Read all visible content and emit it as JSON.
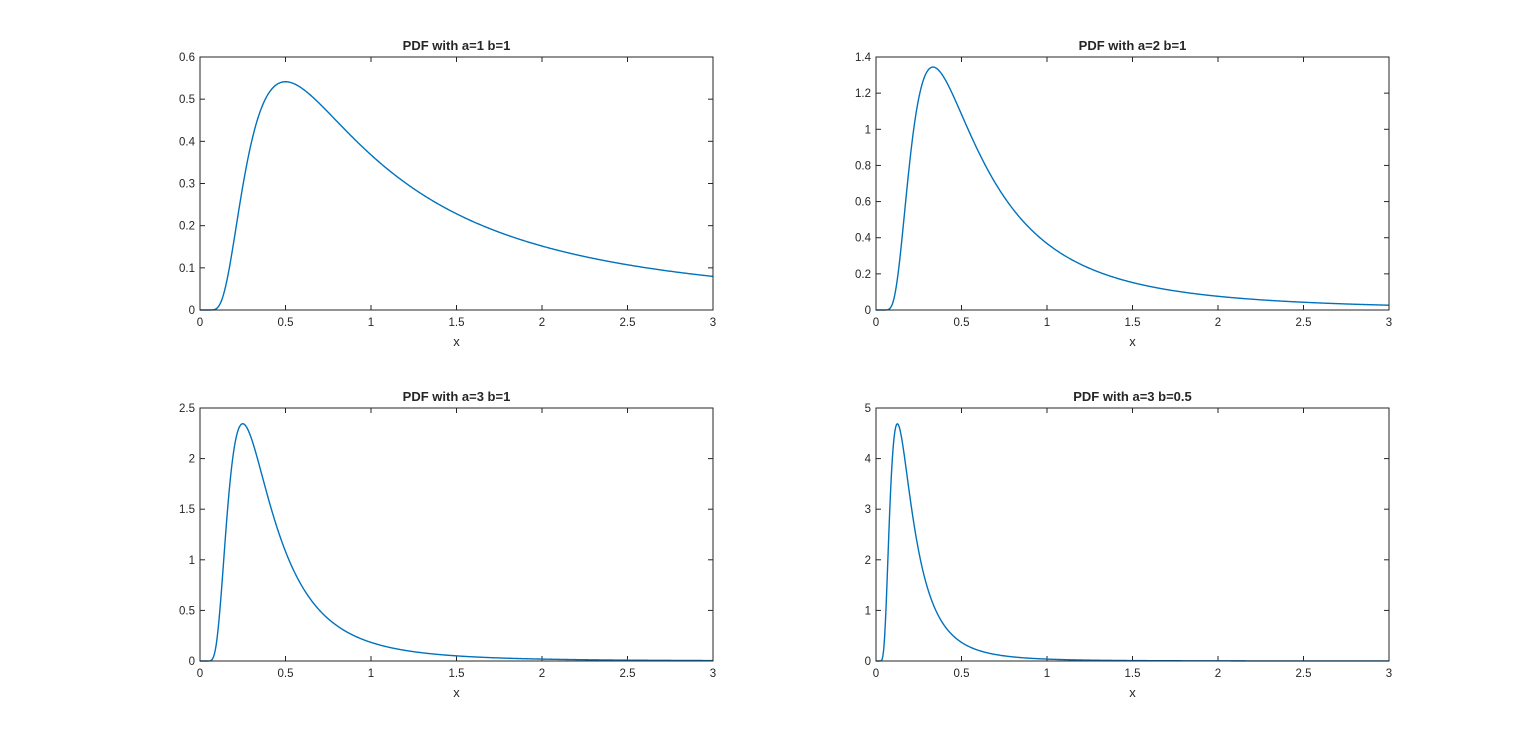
{
  "figure": {
    "line_color": "#0072bd",
    "axis_color": "#262626",
    "background": "#ffffff"
  },
  "chart_data": [
    {
      "type": "line",
      "title": "PDF with a=1 b=1",
      "xlabel": "x",
      "ylabel": "",
      "params": {
        "a": 1,
        "b": 1
      },
      "xlim": [
        0,
        3
      ],
      "ylim": [
        0,
        0.6
      ],
      "xticks": [
        0,
        0.5,
        1,
        1.5,
        2,
        2.5,
        3
      ],
      "xtick_labels": [
        "0",
        "0.5",
        "1",
        "1.5",
        "2",
        "2.5",
        "3"
      ],
      "yticks": [
        0,
        0.1,
        0.2,
        0.3,
        0.4,
        0.5,
        0.6
      ],
      "ytick_labels": [
        "0",
        "0.1",
        "0.2",
        "0.3",
        "0.4",
        "0.5",
        "0.6"
      ],
      "grid": false,
      "legend": null,
      "series": [
        {
          "name": "PDF",
          "x": [
            0,
            0.1,
            0.2,
            0.3,
            0.4,
            0.5,
            0.75,
            1,
            1.5,
            2,
            2.5,
            3
          ],
          "y": [
            0,
            0.0045,
            0.168,
            0.396,
            0.513,
            0.541,
            0.468,
            0.368,
            0.228,
            0.152,
            0.107,
            0.08
          ]
        }
      ]
    },
    {
      "type": "line",
      "title": "PDF with a=2 b=1",
      "xlabel": "x",
      "ylabel": "",
      "params": {
        "a": 2,
        "b": 1
      },
      "xlim": [
        0,
        3
      ],
      "ylim": [
        0,
        1.4
      ],
      "xticks": [
        0,
        0.5,
        1,
        1.5,
        2,
        2.5,
        3
      ],
      "xtick_labels": [
        "0",
        "0.5",
        "1",
        "1.5",
        "2",
        "2.5",
        "3"
      ],
      "yticks": [
        0,
        0.2,
        0.4,
        0.6,
        0.8,
        1,
        1.2,
        1.4
      ],
      "ytick_labels": [
        "0",
        "0.2",
        "0.4",
        "0.6",
        "0.8",
        "1",
        "1.2",
        "1.4"
      ],
      "grid": false,
      "legend": null,
      "series": [
        {
          "name": "PDF",
          "x": [
            0,
            0.1,
            0.2,
            0.3,
            0.333,
            0.4,
            0.5,
            0.75,
            1,
            1.5,
            2,
            2.5,
            3
          ],
          "y": [
            0,
            0.045,
            0.842,
            1.322,
            1.344,
            1.282,
            1.083,
            0.625,
            0.368,
            0.152,
            0.076,
            0.043,
            0.027
          ]
        }
      ]
    },
    {
      "type": "line",
      "title": "PDF with a=3 b=1",
      "xlabel": "x",
      "ylabel": "",
      "params": {
        "a": 3,
        "b": 1
      },
      "xlim": [
        0,
        3
      ],
      "ylim": [
        0,
        2.5
      ],
      "xticks": [
        0,
        0.5,
        1,
        1.5,
        2,
        2.5,
        3
      ],
      "xtick_labels": [
        "0",
        "0.5",
        "1",
        "1.5",
        "2",
        "2.5",
        "3"
      ],
      "yticks": [
        0,
        0.5,
        1,
        1.5,
        2,
        2.5
      ],
      "ytick_labels": [
        "0",
        "0.5",
        "1",
        "1.5",
        "2",
        "2.5"
      ],
      "grid": false,
      "legend": null,
      "series": [
        {
          "name": "PDF",
          "x": [
            0,
            0.1,
            0.15,
            0.2,
            0.25,
            0.3,
            0.4,
            0.5,
            0.75,
            1,
            1.5,
            2,
            2.5,
            3
          ],
          "y": [
            0,
            0.227,
            1.254,
            2.106,
            2.344,
            2.203,
            1.603,
            1.083,
            0.417,
            0.184,
            0.051,
            0.019,
            0.009,
            0.004
          ]
        }
      ]
    },
    {
      "type": "line",
      "title": "PDF with a=3 b=0.5",
      "xlabel": "x",
      "ylabel": "",
      "params": {
        "a": 3,
        "b": 0.5
      },
      "xlim": [
        0,
        3
      ],
      "ylim": [
        0,
        5
      ],
      "xticks": [
        0,
        0.5,
        1,
        1.5,
        2,
        2.5,
        3
      ],
      "xtick_labels": [
        "0",
        "0.5",
        "1",
        "1.5",
        "2",
        "2.5",
        "3"
      ],
      "yticks": [
        0,
        1,
        2,
        3,
        4,
        5
      ],
      "ytick_labels": [
        "0",
        "1",
        "2",
        "3",
        "4",
        "5"
      ],
      "grid": false,
      "legend": null,
      "series": [
        {
          "name": "PDF",
          "x": [
            0,
            0.05,
            0.075,
            0.1,
            0.125,
            0.15,
            0.2,
            0.25,
            0.3,
            0.4,
            0.5,
            0.75,
            1,
            1.5,
            2,
            3
          ],
          "y": [
            0,
            0.454,
            2.509,
            4.212,
            4.689,
            4.407,
            3.206,
            2.165,
            1.458,
            0.699,
            0.368,
            0.101,
            0.038,
            0.013,
            0.003,
            0.001
          ]
        }
      ]
    }
  ]
}
